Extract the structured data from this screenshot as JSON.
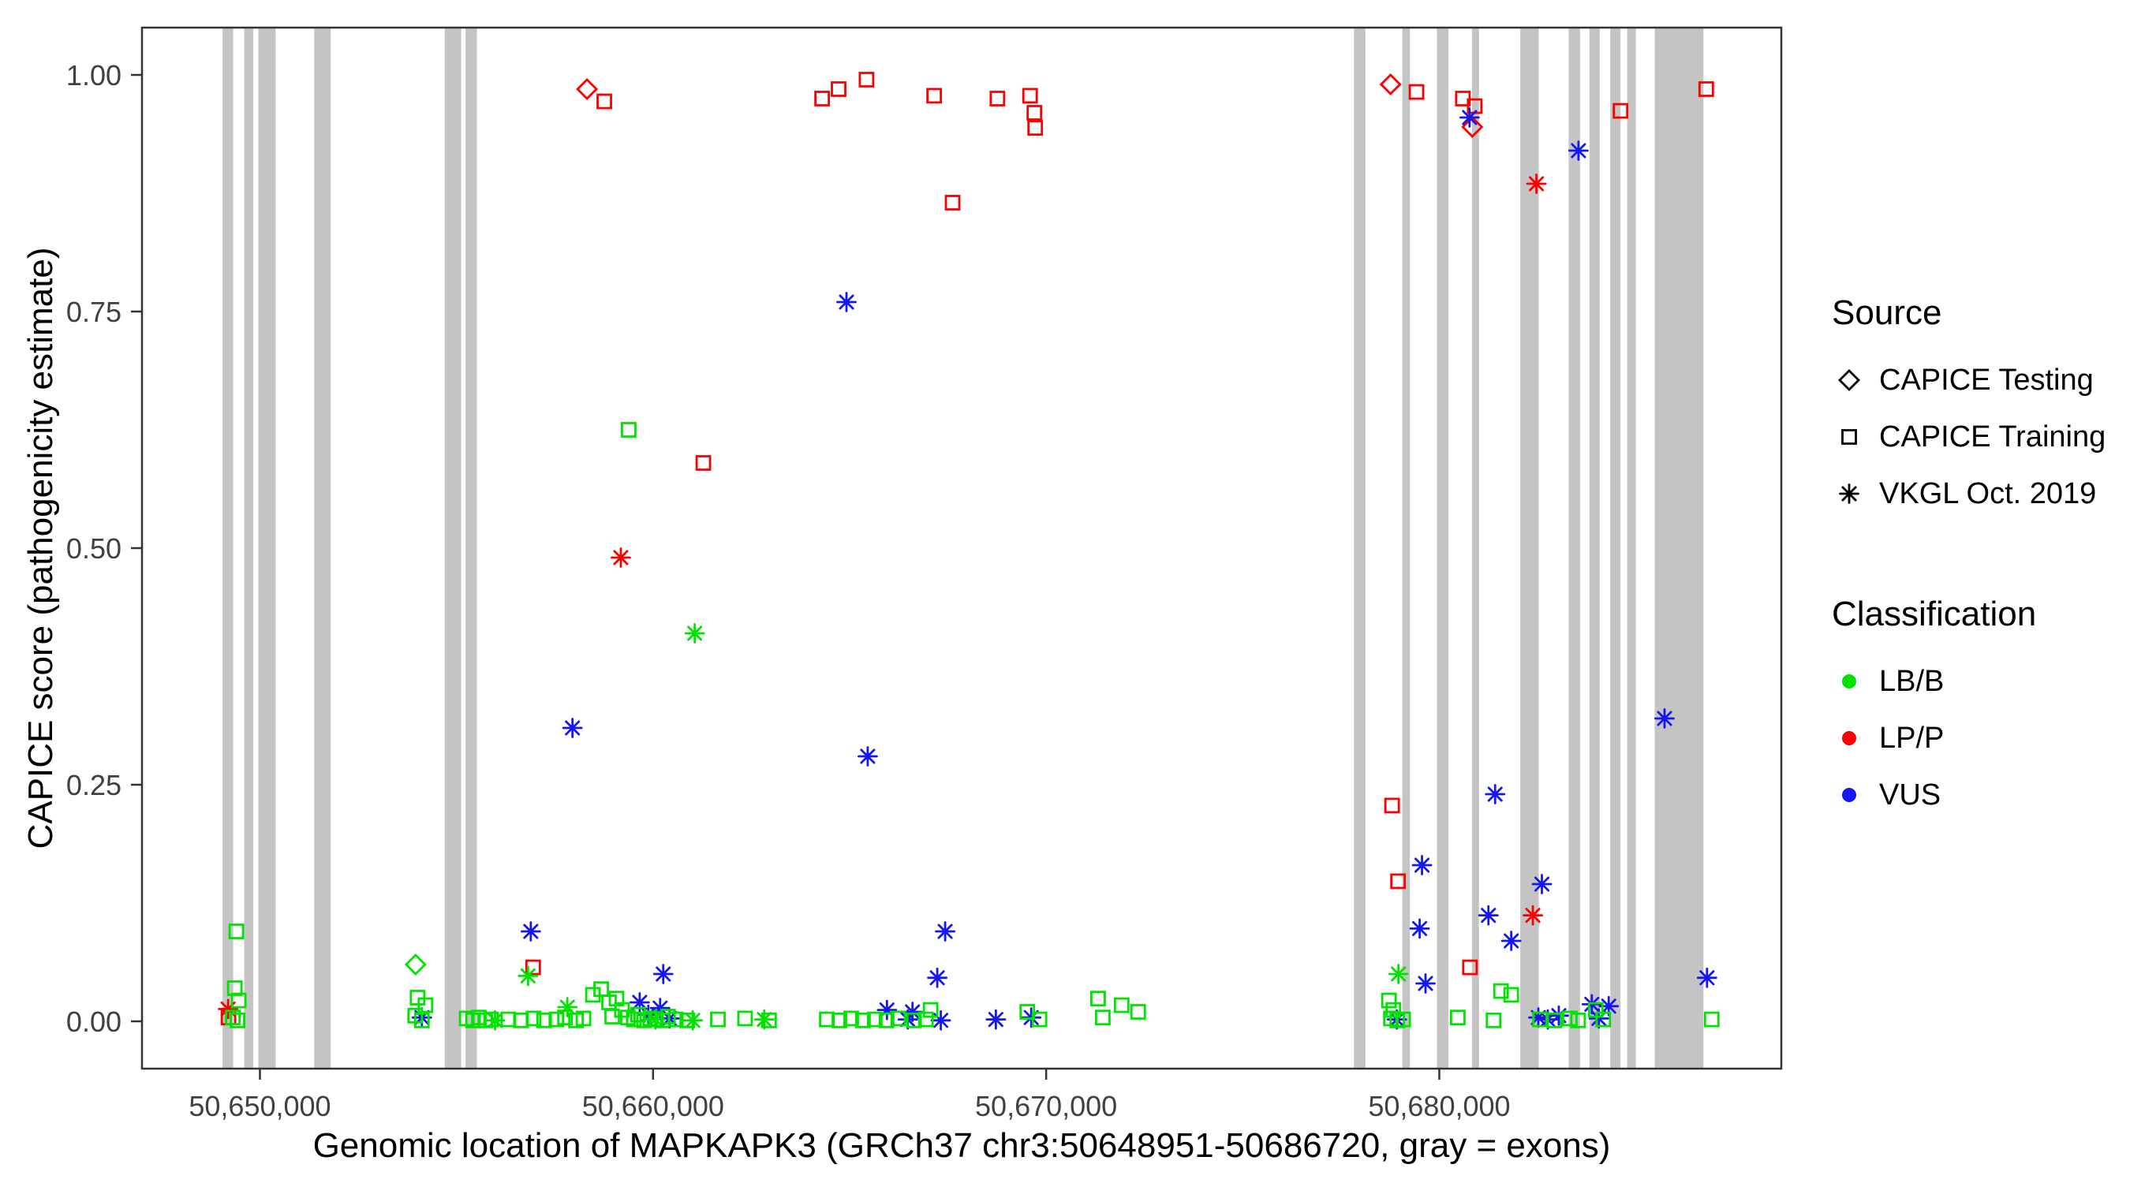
{
  "chart_data": {
    "type": "scatter",
    "title": "",
    "xlabel": "Genomic location of MAPKAPK3 (GRCh37 chr3:50648951-50686720, gray = exons)",
    "ylabel": "CAPICE score (pathogenicity estimate)",
    "xlim": [
      50647000,
      50688700
    ],
    "ylim": [
      -0.05,
      1.05
    ],
    "x_ticks": [
      {
        "value": 50650000,
        "label": "50,650,000"
      },
      {
        "value": 50660000,
        "label": "50,660,000"
      },
      {
        "value": 50670000,
        "label": "50,670,000"
      },
      {
        "value": 50680000,
        "label": "50,680,000"
      }
    ],
    "y_ticks": [
      {
        "value": 0.0,
        "label": "0.00"
      },
      {
        "value": 0.25,
        "label": "0.25"
      },
      {
        "value": 0.5,
        "label": "0.50"
      },
      {
        "value": 0.75,
        "label": "0.75"
      },
      {
        "value": 1.0,
        "label": "1.00"
      }
    ],
    "grid": false,
    "legend_position": "right",
    "exon_color": "#C4C4C4",
    "exons": [
      [
        50649050,
        50649320
      ],
      [
        50649600,
        50649830
      ],
      [
        50649960,
        50650400
      ],
      [
        50651380,
        50651800
      ],
      [
        50654700,
        50655120
      ],
      [
        50655230,
        50655520
      ],
      [
        50677830,
        50678120
      ],
      [
        50679060,
        50679250
      ],
      [
        50679940,
        50680230
      ],
      [
        50680830,
        50681010
      ],
      [
        50682060,
        50682530
      ],
      [
        50683290,
        50683580
      ],
      [
        50683820,
        50684080
      ],
      [
        50684350,
        50684610
      ],
      [
        50684780,
        50685000
      ],
      [
        50685480,
        50686720
      ]
    ],
    "class_colors": {
      "LB/B": "#00E300",
      "LP/P": "#FA0000",
      "VUS": "#1616F0"
    },
    "source_shapes": {
      "testing": "diamond",
      "training": "square",
      "vkgl": "asterisk"
    },
    "points": [
      [
        50658760,
        0.972,
        "training",
        "LP/P"
      ],
      [
        50664300,
        0.975,
        "training",
        "LP/P"
      ],
      [
        50664720,
        0.985,
        "training",
        "LP/P"
      ],
      [
        50665430,
        0.995,
        "training",
        "LP/P"
      ],
      [
        50667150,
        0.978,
        "training",
        "LP/P"
      ],
      [
        50667620,
        0.865,
        "training",
        "LP/P"
      ],
      [
        50668760,
        0.975,
        "training",
        "LP/P"
      ],
      [
        50669590,
        0.978,
        "training",
        "LP/P"
      ],
      [
        50669700,
        0.96,
        "training",
        "LP/P"
      ],
      [
        50669720,
        0.944,
        "training",
        "LP/P"
      ],
      [
        50679420,
        0.982,
        "training",
        "LP/P"
      ],
      [
        50680600,
        0.975,
        "training",
        "LP/P"
      ],
      [
        50680900,
        0.967,
        "training",
        "LP/P"
      ],
      [
        50684610,
        0.962,
        "training",
        "LP/P"
      ],
      [
        50686790,
        0.985,
        "training",
        "LP/P"
      ],
      [
        50678800,
        0.228,
        "training",
        "LP/P"
      ],
      [
        50678950,
        0.148,
        "training",
        "LP/P"
      ],
      [
        50656950,
        0.057,
        "training",
        "LP/P"
      ],
      [
        50680780,
        0.057,
        "training",
        "LP/P"
      ],
      [
        50661280,
        0.59,
        "training",
        "LP/P"
      ],
      [
        50649200,
        0.004,
        "training",
        "LP/P"
      ],
      [
        50658320,
        0.985,
        "testing",
        "LP/P"
      ],
      [
        50678760,
        0.99,
        "testing",
        "LP/P"
      ],
      [
        50680840,
        0.945,
        "testing",
        "LP/P"
      ],
      [
        50659180,
        0.49,
        "vkgl",
        "LP/P"
      ],
      [
        50682470,
        0.885,
        "vkgl",
        "LP/P"
      ],
      [
        50682380,
        0.112,
        "vkgl",
        "LP/P"
      ],
      [
        50649190,
        0.013,
        "vkgl",
        "LP/P"
      ],
      [
        50680770,
        0.955,
        "vkgl",
        "VUS"
      ],
      [
        50683540,
        0.92,
        "vkgl",
        "VUS"
      ],
      [
        50664920,
        0.76,
        "vkgl",
        "VUS"
      ],
      [
        50665460,
        0.28,
        "vkgl",
        "VUS"
      ],
      [
        50657950,
        0.31,
        "vkgl",
        "VUS"
      ],
      [
        50681420,
        0.24,
        "vkgl",
        "VUS"
      ],
      [
        50685730,
        0.32,
        "vkgl",
        "VUS"
      ],
      [
        50656890,
        0.095,
        "vkgl",
        "VUS"
      ],
      [
        50667430,
        0.095,
        "vkgl",
        "VUS"
      ],
      [
        50679560,
        0.165,
        "vkgl",
        "VUS"
      ],
      [
        50679500,
        0.098,
        "vkgl",
        "VUS"
      ],
      [
        50682610,
        0.145,
        "vkgl",
        "VUS"
      ],
      [
        50681250,
        0.112,
        "vkgl",
        "VUS"
      ],
      [
        50681830,
        0.085,
        "vkgl",
        "VUS"
      ],
      [
        50660260,
        0.05,
        "vkgl",
        "VUS"
      ],
      [
        50667230,
        0.046,
        "vkgl",
        "VUS"
      ],
      [
        50679650,
        0.04,
        "vkgl",
        "VUS"
      ],
      [
        50686810,
        0.046,
        "vkgl",
        "VUS"
      ],
      [
        50654120,
        0.004,
        "vkgl",
        "VUS"
      ],
      [
        50659660,
        0.02,
        "vkgl",
        "VUS"
      ],
      [
        50659880,
        0.007,
        "vkgl",
        "VUS"
      ],
      [
        50665950,
        0.012,
        "vkgl",
        "VUS"
      ],
      [
        50666600,
        0.01,
        "vkgl",
        "VUS"
      ],
      [
        50666480,
        0.002,
        "vkgl",
        "VUS"
      ],
      [
        50667320,
        0.001,
        "vkgl",
        "VUS"
      ],
      [
        50668720,
        0.002,
        "vkgl",
        "VUS"
      ],
      [
        50669620,
        0.004,
        "vkgl",
        "VUS"
      ],
      [
        50678920,
        0.002,
        "vkgl",
        "VUS"
      ],
      [
        50682520,
        0.004,
        "vkgl",
        "VUS"
      ],
      [
        50682760,
        0.002,
        "vkgl",
        "VUS"
      ],
      [
        50683040,
        0.006,
        "vkgl",
        "VUS"
      ],
      [
        50683880,
        0.018,
        "vkgl",
        "VUS"
      ],
      [
        50684310,
        0.016,
        "vkgl",
        "VUS"
      ],
      [
        50684060,
        0.003,
        "vkgl",
        "VUS"
      ],
      [
        50660180,
        0.014,
        "vkgl",
        "VUS"
      ],
      [
        50660420,
        0.003,
        "vkgl",
        "VUS"
      ],
      [
        50653960,
        0.06,
        "testing",
        "LB/B"
      ],
      [
        50661060,
        0.41,
        "vkgl",
        "LB/B"
      ],
      [
        50656820,
        0.048,
        "vkgl",
        "LB/B"
      ],
      [
        50678960,
        0.05,
        "vkgl",
        "LB/B"
      ],
      [
        50657820,
        0.015,
        "vkgl",
        "LB/B"
      ],
      [
        50660060,
        0.002,
        "vkgl",
        "LB/B"
      ],
      [
        50662830,
        0.002,
        "vkgl",
        "LB/B"
      ],
      [
        50655980,
        0.001,
        "vkgl",
        "LB/B"
      ],
      [
        50661010,
        0.001,
        "vkgl",
        "LB/B"
      ],
      [
        50659380,
        0.625,
        "training",
        "LB/B"
      ],
      [
        50649400,
        0.095,
        "training",
        "LB/B"
      ],
      [
        50649360,
        0.035,
        "training",
        "LB/B"
      ],
      [
        50649460,
        0.022,
        "training",
        "LB/B"
      ],
      [
        50649310,
        0.004,
        "training",
        "LB/B"
      ],
      [
        50649430,
        0.001,
        "training",
        "LB/B"
      ],
      [
        50654010,
        0.025,
        "training",
        "LB/B"
      ],
      [
        50654210,
        0.017,
        "training",
        "LB/B"
      ],
      [
        50653950,
        0.006,
        "training",
        "LB/B"
      ],
      [
        50654120,
        0.001,
        "training",
        "LB/B"
      ],
      [
        50655260,
        0.003,
        "training",
        "LB/B"
      ],
      [
        50655420,
        0.001,
        "training",
        "LB/B"
      ],
      [
        50655570,
        0.004,
        "training",
        "LB/B"
      ],
      [
        50655730,
        0.001,
        "training",
        "LB/B"
      ],
      [
        50655880,
        0.002,
        "training",
        "LB/B"
      ],
      [
        50656320,
        0.002,
        "training",
        "LB/B"
      ],
      [
        50656640,
        0.001,
        "training",
        "LB/B"
      ],
      [
        50656960,
        0.003,
        "training",
        "LB/B"
      ],
      [
        50657230,
        0.001,
        "training",
        "LB/B"
      ],
      [
        50657540,
        0.002,
        "training",
        "LB/B"
      ],
      [
        50657760,
        0.004,
        "training",
        "LB/B"
      ],
      [
        50658040,
        0.001,
        "training",
        "LB/B"
      ],
      [
        50658230,
        0.003,
        "training",
        "LB/B"
      ],
      [
        50658470,
        0.028,
        "training",
        "LB/B"
      ],
      [
        50658680,
        0.034,
        "training",
        "LB/B"
      ],
      [
        50658880,
        0.02,
        "training",
        "LB/B"
      ],
      [
        50658960,
        0.005,
        "training",
        "LB/B"
      ],
      [
        50659070,
        0.024,
        "training",
        "LB/B"
      ],
      [
        50659210,
        0.012,
        "training",
        "LB/B"
      ],
      [
        50659360,
        0.004,
        "training",
        "LB/B"
      ],
      [
        50659510,
        0.002,
        "training",
        "LB/B"
      ],
      [
        50659620,
        0.007,
        "training",
        "LB/B"
      ],
      [
        50659770,
        0.001,
        "training",
        "LB/B"
      ],
      [
        50659930,
        0.003,
        "training",
        "LB/B"
      ],
      [
        50660070,
        0.002,
        "training",
        "LB/B"
      ],
      [
        50660230,
        0.001,
        "training",
        "LB/B"
      ],
      [
        50660380,
        0.005,
        "training",
        "LB/B"
      ],
      [
        50660580,
        0.002,
        "training",
        "LB/B"
      ],
      [
        50660870,
        0.001,
        "training",
        "LB/B"
      ],
      [
        50661650,
        0.002,
        "training",
        "LB/B"
      ],
      [
        50662340,
        0.003,
        "training",
        "LB/B"
      ],
      [
        50662950,
        0.001,
        "training",
        "LB/B"
      ],
      [
        50664420,
        0.002,
        "training",
        "LB/B"
      ],
      [
        50664740,
        0.001,
        "training",
        "LB/B"
      ],
      [
        50665040,
        0.003,
        "training",
        "LB/B"
      ],
      [
        50665340,
        0.001,
        "training",
        "LB/B"
      ],
      [
        50665640,
        0.002,
        "training",
        "LB/B"
      ],
      [
        50665940,
        0.001,
        "training",
        "LB/B"
      ],
      [
        50666240,
        0.003,
        "training",
        "LB/B"
      ],
      [
        50666640,
        0.001,
        "training",
        "LB/B"
      ],
      [
        50666940,
        0.002,
        "training",
        "LB/B"
      ],
      [
        50667060,
        0.012,
        "training",
        "LB/B"
      ],
      [
        50669520,
        0.01,
        "training",
        "LB/B"
      ],
      [
        50669830,
        0.002,
        "training",
        "LB/B"
      ],
      [
        50671320,
        0.024,
        "training",
        "LB/B"
      ],
      [
        50671920,
        0.017,
        "training",
        "LB/B"
      ],
      [
        50671440,
        0.004,
        "training",
        "LB/B"
      ],
      [
        50672340,
        0.01,
        "training",
        "LB/B"
      ],
      [
        50678720,
        0.022,
        "training",
        "LB/B"
      ],
      [
        50678830,
        0.012,
        "training",
        "LB/B"
      ],
      [
        50678770,
        0.003,
        "training",
        "LB/B"
      ],
      [
        50678930,
        0.001,
        "training",
        "LB/B"
      ],
      [
        50679080,
        0.002,
        "training",
        "LB/B"
      ],
      [
        50680470,
        0.004,
        "training",
        "LB/B"
      ],
      [
        50681570,
        0.032,
        "training",
        "LB/B"
      ],
      [
        50681830,
        0.028,
        "training",
        "LB/B"
      ],
      [
        50681380,
        0.001,
        "training",
        "LB/B"
      ],
      [
        50682560,
        0.002,
        "training",
        "LB/B"
      ],
      [
        50682930,
        0.001,
        "training",
        "LB/B"
      ],
      [
        50683320,
        0.003,
        "training",
        "LB/B"
      ],
      [
        50683530,
        0.001,
        "training",
        "LB/B"
      ],
      [
        50683980,
        0.012,
        "training",
        "LB/B"
      ],
      [
        50684170,
        0.002,
        "training",
        "LB/B"
      ],
      [
        50686930,
        0.002,
        "training",
        "LB/B"
      ]
    ]
  },
  "legend": {
    "source": {
      "title": "Source",
      "items": [
        {
          "label": "CAPICE Testing",
          "shape": "diamond"
        },
        {
          "label": "CAPICE Training",
          "shape": "square"
        },
        {
          "label": "VKGL Oct. 2019",
          "shape": "asterisk"
        }
      ]
    },
    "classification": {
      "title": "Classification",
      "items": [
        {
          "label": "LB/B",
          "class": "LB/B"
        },
        {
          "label": "LP/P",
          "class": "LP/P"
        },
        {
          "label": "VUS",
          "class": "VUS"
        }
      ]
    }
  }
}
